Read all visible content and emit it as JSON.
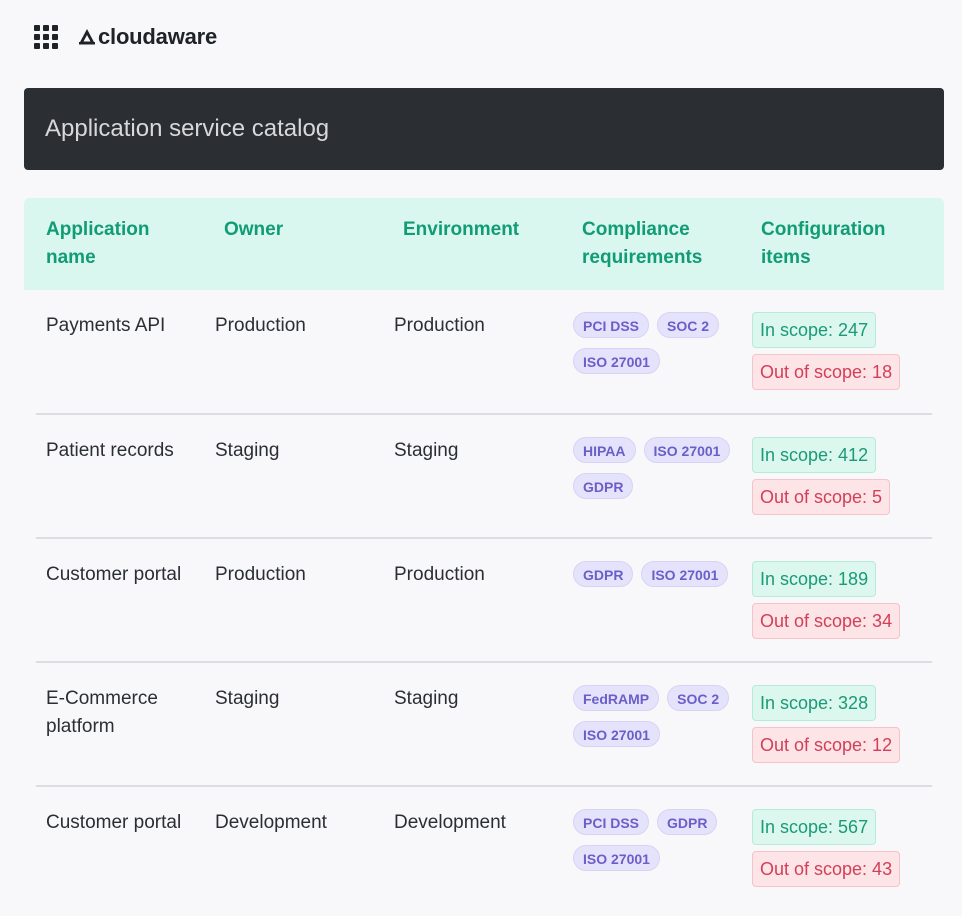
{
  "brand": {
    "name": "cloudaware",
    "menu_icon": "apps-grid-icon",
    "logo_icon": "cloudaware-logo-icon"
  },
  "page": {
    "title": "Application service catalog"
  },
  "table": {
    "columns": [
      "Application name",
      "Owner",
      "Environment",
      "Compliance requirements",
      "Configuration items"
    ],
    "rows": [
      {
        "app": "Payments API",
        "owner": "Production",
        "environment": "Production",
        "compliance": [
          "PCI DSS",
          "SOC 2",
          "ISO 27001"
        ],
        "in_scope": "In scope: 247",
        "out_scope": "Out of scope: 18"
      },
      {
        "app": "Patient records",
        "owner": "Staging",
        "environment": "Staging",
        "compliance": [
          "HIPAA",
          "ISO 27001",
          "GDPR"
        ],
        "in_scope": "In scope: 412",
        "out_scope": "Out of scope: 5"
      },
      {
        "app": "Customer portal",
        "owner": "Production",
        "environment": "Production",
        "compliance": [
          "GDPR",
          "ISO 27001"
        ],
        "in_scope": "In scope: 189",
        "out_scope": "Out of scope: 34"
      },
      {
        "app": "E-Commerce platform",
        "owner": "Staging",
        "environment": "Staging",
        "compliance": [
          "FedRAMP",
          "SOC 2",
          "ISO 27001"
        ],
        "in_scope": "In scope: 328",
        "out_scope": "Out of scope: 12"
      },
      {
        "app": "Customer portal",
        "owner": "Development",
        "environment": "Development",
        "compliance": [
          "PCI DSS",
          "GDPR",
          "ISO 27001"
        ],
        "in_scope": "In scope: 567",
        "out_scope": "Out of scope: 43"
      }
    ]
  },
  "colors": {
    "header_bg": "#d9f7ee",
    "header_text": "#119c76",
    "title_bar_bg": "#2b2f33",
    "pill_bg": "#e5e2fb",
    "pill_text": "#6a5fc9",
    "in_scope_bg": "#dbf7ee",
    "in_scope_text": "#1b9a76",
    "out_scope_bg": "#fde4e7",
    "out_scope_text": "#d23f58"
  }
}
